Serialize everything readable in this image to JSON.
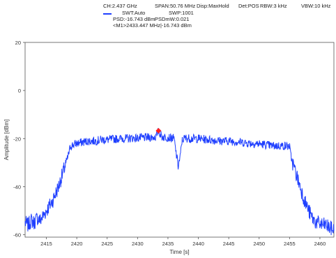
{
  "legend": {
    "ch": "CH:2.437 GHz",
    "span": "SPAN:50.76 MHz",
    "disp": "Disp:MaxHold",
    "det": "Det:POS",
    "rbw": "RBW:3 kHz",
    "vbw": "VBW:10 kHz",
    "swt": "SWT:Auto",
    "swp": "SWP:1001",
    "psd": "PSD:-16.743 dBm",
    "psdmw": "PSDmW:0.021",
    "marker": "<M1>2433.447 MHz|-16.743 dBm"
  },
  "colors": {
    "trace": "#1f3fff",
    "marker": "#ff2020",
    "axis": "#555555",
    "background": "#ffffff"
  },
  "chart_data": {
    "type": "line",
    "title": "",
    "xlabel": "Time [s]",
    "ylabel": "Amplitude [dBm]",
    "xlim": [
      2411.5,
      2462.3
    ],
    "ylim": [
      -61,
      20
    ],
    "xticks": [
      2415,
      2420,
      2425,
      2430,
      2435,
      2440,
      2445,
      2450,
      2455,
      2460
    ],
    "yticks": [
      20,
      0,
      -20,
      -40,
      -60
    ],
    "grid": false,
    "series": [
      {
        "name": "",
        "x": [
          2411.5,
          2412,
          2412.5,
          2413,
          2413.5,
          2414,
          2414.5,
          2415,
          2415.5,
          2416,
          2416.5,
          2417,
          2417.5,
          2418,
          2418.5,
          2418.8,
          2419,
          2420,
          2421,
          2422,
          2423,
          2424,
          2425,
          2426,
          2427,
          2428,
          2429,
          2430,
          2431,
          2432,
          2433,
          2433.447,
          2434,
          2435,
          2436,
          2436.4,
          2436.7,
          2437,
          2437.3,
          2437.6,
          2438,
          2439,
          2440,
          2441,
          2442,
          2443,
          2444,
          2445,
          2446,
          2447,
          2448,
          2449,
          2450,
          2451,
          2452,
          2453,
          2454,
          2455,
          2455.2,
          2455.5,
          2456,
          2456.5,
          2457,
          2457.5,
          2458,
          2458.5,
          2459,
          2459.5,
          2460,
          2460.5,
          2461,
          2461.5,
          2462.3
        ],
        "y": [
          -55,
          -56,
          -54,
          -55,
          -53,
          -54,
          -52,
          -50,
          -48,
          -46,
          -43,
          -40,
          -36,
          -32,
          -28,
          -25,
          -23,
          -22,
          -21.5,
          -21,
          -21,
          -20.5,
          -20.5,
          -20.2,
          -20,
          -20,
          -19.8,
          -19.8,
          -19.6,
          -19.5,
          -19.3,
          -16.743,
          -19.2,
          -19.5,
          -20,
          -27,
          -31,
          -28,
          -21,
          -20,
          -19.8,
          -20,
          -20,
          -20.3,
          -20.5,
          -20.8,
          -21,
          -21,
          -21.2,
          -21.5,
          -21.8,
          -22,
          -22.2,
          -22.5,
          -23,
          -23,
          -23,
          -23.2,
          -27,
          -30,
          -34,
          -38,
          -42,
          -46,
          -49,
          -52,
          -54,
          -55,
          -55.5,
          -56,
          -56,
          -57,
          -58
        ]
      }
    ],
    "marker": {
      "label": "M1",
      "x": 2433.447,
      "y": -16.743
    }
  }
}
